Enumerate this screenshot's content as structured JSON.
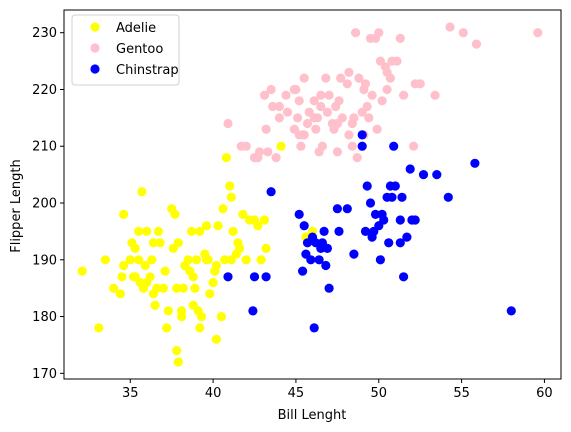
{
  "chart_data": {
    "type": "scatter",
    "title": "",
    "xlabel": "Bill Lenght",
    "ylabel": "Flipper Length",
    "xlim": [
      31,
      61
    ],
    "ylim": [
      169,
      234
    ],
    "xticks": [
      35,
      40,
      45,
      50,
      55,
      60
    ],
    "yticks": [
      170,
      180,
      190,
      200,
      210,
      220,
      230
    ],
    "grid": false,
    "legend": "top-left",
    "series": [
      {
        "name": "Adelie",
        "color": "#ffff00",
        "points": [
          [
            32.1,
            188
          ],
          [
            33.1,
            178
          ],
          [
            33.5,
            190
          ],
          [
            34.0,
            185
          ],
          [
            34.4,
            184
          ],
          [
            34.5,
            187
          ],
          [
            34.6,
            189
          ],
          [
            34.6,
            198
          ],
          [
            35.0,
            190
          ],
          [
            35.1,
            193
          ],
          [
            35.2,
            187
          ],
          [
            35.3,
            187
          ],
          [
            35.3,
            192
          ],
          [
            35.5,
            195
          ],
          [
            35.5,
            190
          ],
          [
            35.6,
            186
          ],
          [
            35.7,
            202
          ],
          [
            35.8,
            185
          ],
          [
            35.9,
            189
          ],
          [
            36.0,
            195
          ],
          [
            36.0,
            186
          ],
          [
            36.2,
            187
          ],
          [
            36.3,
            190
          ],
          [
            36.4,
            184
          ],
          [
            36.5,
            182
          ],
          [
            36.6,
            185
          ],
          [
            36.7,
            195
          ],
          [
            36.8,
            193
          ],
          [
            37.0,
            185
          ],
          [
            37.1,
            188
          ],
          [
            37.2,
            178
          ],
          [
            37.3,
            181
          ],
          [
            37.5,
            199
          ],
          [
            37.6,
            192
          ],
          [
            37.7,
            198
          ],
          [
            37.8,
            174
          ],
          [
            37.9,
            172
          ],
          [
            37.9,
            193
          ],
          [
            38.1,
            181
          ],
          [
            38.2,
            185
          ],
          [
            38.3,
            189
          ],
          [
            38.5,
            190
          ],
          [
            38.6,
            188
          ],
          [
            38.7,
            195
          ],
          [
            38.8,
            182
          ],
          [
            38.9,
            185
          ],
          [
            39.0,
            190
          ],
          [
            39.1,
            181
          ],
          [
            39.2,
            195
          ],
          [
            39.3,
            180
          ],
          [
            39.5,
            191
          ],
          [
            39.6,
            196
          ],
          [
            39.7,
            190
          ],
          [
            39.8,
            184
          ],
          [
            40.0,
            186
          ],
          [
            40.1,
            188
          ],
          [
            40.2,
            189
          ],
          [
            40.3,
            196
          ],
          [
            40.5,
            180
          ],
          [
            40.6,
            199
          ],
          [
            40.7,
            190
          ],
          [
            40.8,
            208
          ],
          [
            40.9,
            187
          ],
          [
            41.0,
            203
          ],
          [
            41.1,
            201
          ],
          [
            41.2,
            195
          ],
          [
            41.4,
            191
          ],
          [
            41.5,
            193
          ],
          [
            41.6,
            192
          ],
          [
            41.8,
            198
          ],
          [
            42.0,
            190
          ],
          [
            42.2,
            197
          ],
          [
            42.5,
            197
          ],
          [
            42.7,
            196
          ],
          [
            42.9,
            190
          ],
          [
            43.1,
            197
          ],
          [
            43.2,
            192
          ],
          [
            44.1,
            210
          ],
          [
            45.6,
            194
          ],
          [
            46.0,
            195
          ],
          [
            37.8,
            185
          ],
          [
            38.1,
            180
          ],
          [
            38.8,
            187
          ],
          [
            39.2,
            178
          ],
          [
            40.2,
            176
          ],
          [
            36.4,
            193
          ],
          [
            39.6,
            190
          ],
          [
            41.1,
            190
          ]
        ]
      },
      {
        "name": "Gentoo",
        "color": "#ffc0cb",
        "points": [
          [
            40.9,
            214
          ],
          [
            41.7,
            210
          ],
          [
            42.0,
            210
          ],
          [
            42.5,
            208
          ],
          [
            42.7,
            208
          ],
          [
            42.8,
            209
          ],
          [
            43.2,
            213
          ],
          [
            43.3,
            209
          ],
          [
            43.5,
            220
          ],
          [
            43.6,
            217
          ],
          [
            43.8,
            208
          ],
          [
            44.0,
            217
          ],
          [
            44.4,
            219
          ],
          [
            44.5,
            216
          ],
          [
            44.9,
            213
          ],
          [
            45.0,
            220
          ],
          [
            45.1,
            215
          ],
          [
            45.2,
            212
          ],
          [
            45.3,
            210
          ],
          [
            45.4,
            212
          ],
          [
            45.5,
            222
          ],
          [
            45.7,
            214
          ],
          [
            45.8,
            216
          ],
          [
            46.1,
            218
          ],
          [
            46.2,
            213
          ],
          [
            46.3,
            215
          ],
          [
            46.4,
            209
          ],
          [
            46.5,
            217
          ],
          [
            46.6,
            210
          ],
          [
            46.8,
            222
          ],
          [
            46.9,
            216
          ],
          [
            47.2,
            214
          ],
          [
            47.3,
            213
          ],
          [
            47.4,
            217
          ],
          [
            47.5,
            209
          ],
          [
            47.6,
            218
          ],
          [
            47.7,
            222
          ],
          [
            47.8,
            215
          ],
          [
            48.1,
            221
          ],
          [
            48.2,
            212
          ],
          [
            48.4,
            214
          ],
          [
            48.5,
            215
          ],
          [
            48.6,
            230
          ],
          [
            48.7,
            208
          ],
          [
            48.8,
            222
          ],
          [
            49.0,
            216
          ],
          [
            49.1,
            212
          ],
          [
            49.2,
            221
          ],
          [
            49.3,
            217
          ],
          [
            49.4,
            215
          ],
          [
            49.5,
            229
          ],
          [
            49.6,
            219
          ],
          [
            49.8,
            229
          ],
          [
            50.0,
            230
          ],
          [
            50.1,
            225
          ],
          [
            50.2,
            218
          ],
          [
            50.4,
            224
          ],
          [
            50.5,
            223
          ],
          [
            50.7,
            222
          ],
          [
            50.8,
            225
          ],
          [
            51.1,
            225
          ],
          [
            51.3,
            229
          ],
          [
            51.5,
            219
          ],
          [
            52.1,
            210
          ],
          [
            52.2,
            221
          ],
          [
            52.5,
            221
          ],
          [
            53.4,
            219
          ],
          [
            54.3,
            231
          ],
          [
            55.1,
            230
          ],
          [
            55.9,
            228
          ],
          [
            59.6,
            230
          ],
          [
            46.1,
            215
          ],
          [
            45.5,
            212
          ],
          [
            44.9,
            220
          ],
          [
            47.5,
            214
          ],
          [
            48.2,
            223
          ],
          [
            49.9,
            213
          ],
          [
            50.5,
            220
          ],
          [
            45.2,
            218
          ],
          [
            46.5,
            219
          ],
          [
            44.0,
            215
          ],
          [
            43.1,
            219
          ],
          [
            47.0,
            219
          ],
          [
            48.4,
            210
          ],
          [
            49.1,
            220
          ]
        ]
      },
      {
        "name": "Chinstrap",
        "color": "#0000ff",
        "points": [
          [
            40.9,
            187
          ],
          [
            42.4,
            181
          ],
          [
            42.5,
            187
          ],
          [
            43.2,
            187
          ],
          [
            43.5,
            202
          ],
          [
            45.2,
            198
          ],
          [
            45.4,
            188
          ],
          [
            45.5,
            196
          ],
          [
            45.6,
            191
          ],
          [
            45.7,
            193
          ],
          [
            45.9,
            190
          ],
          [
            46.0,
            194
          ],
          [
            46.1,
            178
          ],
          [
            46.2,
            193
          ],
          [
            46.4,
            190
          ],
          [
            46.5,
            192
          ],
          [
            46.6,
            193
          ],
          [
            46.7,
            195
          ],
          [
            46.8,
            189
          ],
          [
            46.9,
            192
          ],
          [
            47.0,
            185
          ],
          [
            47.5,
            199
          ],
          [
            47.6,
            195
          ],
          [
            48.1,
            199
          ],
          [
            48.5,
            191
          ],
          [
            49.0,
            210
          ],
          [
            49.2,
            195
          ],
          [
            49.3,
            203
          ],
          [
            49.5,
            200
          ],
          [
            49.6,
            194
          ],
          [
            49.7,
            195
          ],
          [
            49.8,
            198
          ],
          [
            50.0,
            196
          ],
          [
            50.1,
            190
          ],
          [
            50.2,
            198
          ],
          [
            50.3,
            197
          ],
          [
            50.5,
            201
          ],
          [
            50.6,
            193
          ],
          [
            50.7,
            203
          ],
          [
            50.8,
            201
          ],
          [
            50.9,
            210
          ],
          [
            51.0,
            203
          ],
          [
            51.3,
            193
          ],
          [
            51.4,
            201
          ],
          [
            51.5,
            187
          ],
          [
            51.7,
            194
          ],
          [
            51.9,
            206
          ],
          [
            52.0,
            197
          ],
          [
            52.2,
            197
          ],
          [
            52.7,
            205
          ],
          [
            53.5,
            205
          ],
          [
            54.2,
            201
          ],
          [
            55.8,
            207
          ],
          [
            58.0,
            181
          ],
          [
            49.0,
            212
          ],
          [
            51.3,
            197
          ]
        ]
      }
    ]
  }
}
